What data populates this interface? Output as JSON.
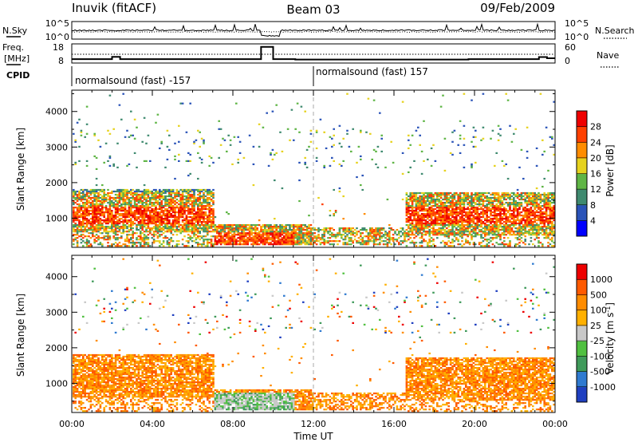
{
  "header": {
    "station": "Inuvik (fitACF)",
    "beam": "Beam 03",
    "date": "09/Feb/2009"
  },
  "chart_data": [
    {
      "type": "line",
      "panel": "noise",
      "left_label": "N.Sky",
      "right_label": "N.Search",
      "left_ticks": [
        "10^5",
        "10^0"
      ],
      "right_ticks": [
        "10^5",
        "10^0"
      ],
      "log_scale": true
    },
    {
      "type": "line",
      "panel": "frequency-nave",
      "left_label_line1": "Freq.",
      "left_label_line2": "[MHz]",
      "right_label": "Nave",
      "left_ticks": [
        "18",
        "8"
      ],
      "right_ticks": [
        "60",
        "0"
      ],
      "freq_ylim": [
        8,
        18
      ],
      "freq_steps": [
        {
          "t": 0.0,
          "v": 10.2
        },
        {
          "t": 2.0,
          "v": 11.5
        },
        {
          "t": 2.4,
          "v": 10.2
        },
        {
          "t": 9.4,
          "v": 17.2
        },
        {
          "t": 10.0,
          "v": 10.2
        },
        {
          "t": 11.1,
          "v": 10.0
        },
        {
          "t": 19.7,
          "v": 10.2
        },
        {
          "t": 23.2,
          "v": 11.4
        },
        {
          "t": 23.6,
          "v": 10.7
        },
        {
          "t": 24.0,
          "v": 10.7
        }
      ]
    },
    {
      "type": "table",
      "panel": "cpid",
      "label": "CPID",
      "segments": [
        {
          "start": 0,
          "end": 12,
          "text": "normalsound (fast) -157"
        },
        {
          "start": 12,
          "end": 24,
          "text": "normalsound (fast) 157"
        }
      ]
    },
    {
      "type": "heatmap",
      "panel": "power",
      "ylabel": "Slant Range [km]",
      "yticks": [
        1000,
        2000,
        3000,
        4000
      ],
      "ylim": [
        180,
        4600
      ],
      "colorbar_label": "Power [dB]",
      "colorbar_ticks": [
        "28",
        "24",
        "20",
        "16",
        "12",
        "8",
        "4"
      ],
      "colorbar_colors": [
        "#0000ff",
        "#2a53b8",
        "#3f8a6f",
        "#5fb545",
        "#e6d21e",
        "#ff8c00",
        "#ff4000",
        "#ee0000"
      ]
    },
    {
      "type": "heatmap",
      "panel": "velocity",
      "ylabel": "Slant Range [km]",
      "yticks": [
        1000,
        2000,
        3000,
        4000
      ],
      "ylim": [
        180,
        4600
      ],
      "colorbar_label": "Velocity [m s",
      "colorbar_label_sup": "-1",
      "colorbar_label_end": "]",
      "colorbar_ticks": [
        "1000",
        "500",
        "100",
        "25",
        "-25",
        "-100",
        "-500",
        "-1000"
      ],
      "colorbar_colors": [
        "#1f3fc0",
        "#2f7ad0",
        "#3f9a5a",
        "#50c040",
        "#c8c8c8",
        "#ffb000",
        "#ff8c00",
        "#ff5a00",
        "#ee0000"
      ]
    }
  ],
  "time_axis": {
    "xlabel": "Time UT",
    "ticks": [
      "00:00",
      "04:00",
      "08:00",
      "12:00",
      "16:00",
      "20:00",
      "00:00"
    ],
    "xlim": [
      0,
      24
    ]
  }
}
